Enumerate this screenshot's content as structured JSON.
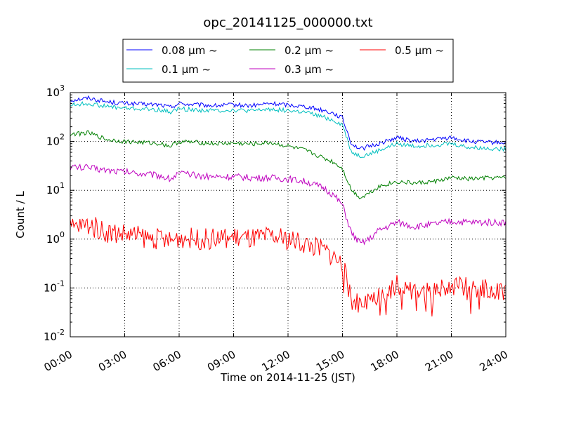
{
  "chart_data": {
    "type": "line",
    "title": "opc_20141125_000000.txt",
    "xlabel": "Time on 2014-11-25 (JST)",
    "ylabel": "Count / L",
    "y_scale": "log",
    "ylim": [
      0.01,
      1000
    ],
    "xlim": [
      "00:00",
      "24:00"
    ],
    "x_tick_labels": [
      "00:00",
      "03:00",
      "06:00",
      "09:00",
      "12:00",
      "15:00",
      "18:00",
      "21:00",
      "24:00"
    ],
    "y_tick_labels": [
      {
        "base": "10",
        "exp": "-2"
      },
      {
        "base": "10",
        "exp": "-1"
      },
      {
        "base": "10",
        "exp": "0"
      },
      {
        "base": "10",
        "exp": "1"
      },
      {
        "base": "10",
        "exp": "2"
      },
      {
        "base": "10",
        "exp": "3"
      }
    ],
    "grid": true,
    "legend_position": "top-center",
    "x": [
      "00:00",
      "01:00",
      "02:00",
      "03:00",
      "04:00",
      "05:00",
      "05:30",
      "06:00",
      "07:00",
      "08:00",
      "09:00",
      "10:00",
      "11:00",
      "12:00",
      "13:00",
      "14:00",
      "14:30",
      "15:00",
      "15:30",
      "16:00",
      "16:30",
      "17:00",
      "18:00",
      "19:00",
      "20:00",
      "21:00",
      "22:00",
      "23:00",
      "24:00"
    ],
    "series": [
      {
        "name": "0.08 μm ~",
        "color": "#0000ff",
        "values": [
          700,
          780,
          650,
          600,
          580,
          560,
          500,
          600,
          560,
          540,
          560,
          540,
          600,
          560,
          520,
          430,
          380,
          300,
          90,
          70,
          80,
          90,
          120,
          100,
          110,
          120,
          100,
          95,
          95
        ]
      },
      {
        "name": "0.1 μm ~",
        "color": "#00bfbf",
        "values": [
          560,
          600,
          520,
          480,
          460,
          440,
          400,
          470,
          440,
          430,
          440,
          420,
          460,
          430,
          390,
          310,
          270,
          220,
          60,
          50,
          55,
          65,
          90,
          80,
          85,
          90,
          75,
          72,
          70
        ]
      },
      {
        "name": "0.2 μm ~",
        "color": "#008000",
        "values": [
          140,
          150,
          110,
          100,
          95,
          90,
          80,
          100,
          95,
          90,
          92,
          88,
          95,
          80,
          65,
          45,
          38,
          28,
          10,
          7,
          9,
          12,
          15,
          14,
          15,
          18,
          17,
          18,
          18
        ]
      },
      {
        "name": "0.3 μm ~",
        "color": "#bf00bf",
        "values": [
          30,
          29,
          26,
          24,
          22,
          20,
          17,
          22,
          20,
          19,
          19,
          18,
          18,
          17,
          15,
          11,
          8,
          5,
          1.3,
          0.8,
          1.0,
          1.5,
          2.2,
          1.8,
          2.0,
          2.3,
          2.2,
          2.2,
          2.2
        ]
      },
      {
        "name": "0.5 μm ~",
        "color": "#ff0000",
        "values": [
          1.7,
          2.0,
          1.4,
          1.3,
          1.1,
          1.0,
          0.9,
          1.1,
          1.0,
          1.0,
          1.1,
          1.0,
          1.1,
          1.0,
          0.8,
          0.6,
          0.45,
          0.3,
          0.06,
          0.04,
          0.05,
          0.07,
          0.12,
          0.09,
          0.09,
          0.12,
          0.1,
          0.09,
          0.08
        ]
      }
    ]
  }
}
